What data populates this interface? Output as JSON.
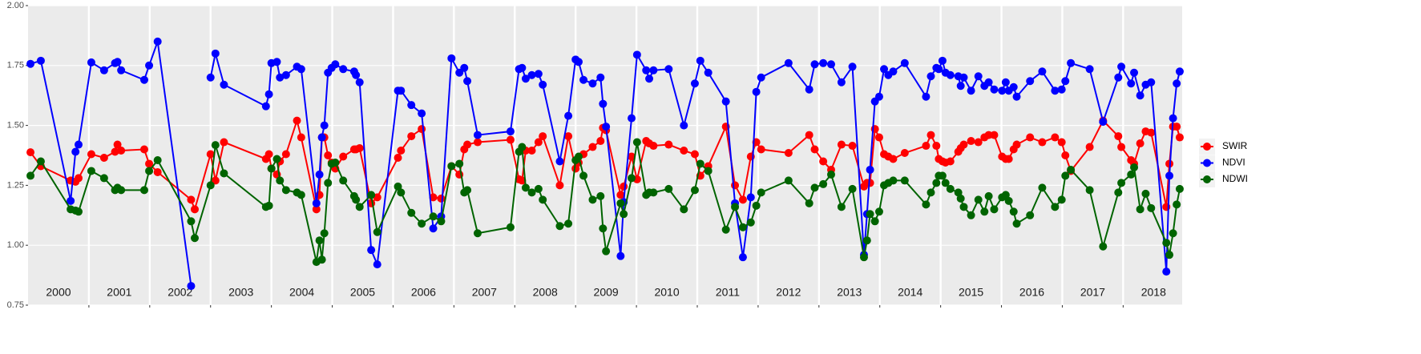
{
  "chart_data": {
    "type": "line",
    "x": [
      2000.04,
      2000.21,
      2000.7,
      2000.78,
      2000.83,
      2001.04,
      2001.25,
      2001.43,
      2001.47,
      2001.53,
      2001.91,
      2001.99,
      2002.13,
      2002.68,
      2002.74,
      2003.0,
      2003.08,
      2003.22,
      2003.91,
      2003.96,
      2004.0,
      2004.09,
      2004.14,
      2004.24,
      2004.42,
      2004.49,
      2004.74,
      2004.79,
      2004.83,
      2004.87,
      2004.93,
      2004.99,
      2005.05,
      2005.18,
      2005.36,
      2005.39,
      2005.45,
      2005.64,
      2005.74,
      2006.08,
      2006.13,
      2006.3,
      2006.47,
      2006.66,
      2006.79,
      2006.96,
      2007.09,
      2007.17,
      2007.22,
      2007.39,
      2007.93,
      2008.07,
      2008.12,
      2008.18,
      2008.28,
      2008.39,
      2008.46,
      2008.74,
      2008.88,
      2009.0,
      2009.05,
      2009.13,
      2009.28,
      2009.41,
      2009.45,
      2009.5,
      2009.74,
      2009.79,
      2009.92,
      2010.01,
      2010.16,
      2010.21,
      2010.28,
      2010.53,
      2010.78,
      2010.96,
      2011.05,
      2011.18,
      2011.47,
      2011.62,
      2011.75,
      2011.88,
      2011.97,
      2012.05,
      2012.5,
      2012.84,
      2012.93,
      2013.07,
      2013.2,
      2013.37,
      2013.55,
      2013.74,
      2013.79,
      2013.84,
      2013.92,
      2013.99,
      2014.07,
      2014.14,
      2014.22,
      2014.41,
      2014.76,
      2014.84,
      2014.93,
      2014.97,
      2015.03,
      2015.08,
      2015.16,
      2015.29,
      2015.33,
      2015.38,
      2015.5,
      2015.62,
      2015.72,
      2015.79,
      2015.88,
      2016.01,
      2016.07,
      2016.12,
      2016.2,
      2016.25,
      2016.47,
      2016.67,
      2016.88,
      2016.99,
      2017.05,
      2017.14,
      2017.45,
      2017.67,
      2017.92,
      2017.97,
      2018.13,
      2018.18,
      2018.28,
      2018.37,
      2018.46,
      2018.71,
      2018.76,
      2018.82,
      2018.88,
      2018.93
    ],
    "series": [
      {
        "name": "SWIR",
        "color": "#ff0000",
        "values": [
          1.388,
          1.33,
          1.27,
          1.265,
          1.28,
          1.38,
          1.365,
          1.39,
          1.42,
          1.395,
          1.4,
          1.34,
          1.305,
          1.19,
          1.15,
          1.38,
          1.27,
          1.43,
          1.36,
          1.38,
          1.32,
          1.295,
          1.35,
          1.38,
          1.52,
          1.45,
          1.15,
          1.21,
          1.45,
          1.45,
          1.375,
          1.345,
          1.32,
          1.37,
          1.4,
          1.4,
          1.405,
          1.175,
          1.2,
          1.365,
          1.395,
          1.455,
          1.485,
          1.2,
          1.195,
          1.33,
          1.295,
          1.4,
          1.42,
          1.43,
          1.44,
          1.275,
          1.27,
          1.395,
          1.395,
          1.43,
          1.455,
          1.25,
          1.455,
          1.32,
          1.345,
          1.38,
          1.41,
          1.435,
          1.49,
          1.48,
          1.21,
          1.245,
          1.37,
          1.275,
          1.435,
          1.425,
          1.415,
          1.42,
          1.395,
          1.38,
          1.29,
          1.33,
          1.495,
          1.25,
          1.19,
          1.37,
          1.43,
          1.4,
          1.385,
          1.46,
          1.4,
          1.35,
          1.315,
          1.42,
          1.415,
          1.245,
          1.26,
          1.26,
          1.485,
          1.45,
          1.38,
          1.37,
          1.36,
          1.385,
          1.415,
          1.46,
          1.415,
          1.36,
          1.35,
          1.345,
          1.35,
          1.39,
          1.405,
          1.42,
          1.435,
          1.43,
          1.45,
          1.46,
          1.46,
          1.37,
          1.36,
          1.36,
          1.4,
          1.42,
          1.45,
          1.43,
          1.45,
          1.43,
          1.375,
          1.31,
          1.41,
          1.52,
          1.455,
          1.41,
          1.355,
          1.34,
          1.425,
          1.475,
          1.47,
          1.16,
          1.34,
          1.495,
          1.495,
          1.45
        ]
      },
      {
        "name": "NDVI",
        "color": "#0000ff",
        "values": [
          1.757,
          1.77,
          1.185,
          1.39,
          1.42,
          1.763,
          1.73,
          1.76,
          1.765,
          1.73,
          1.69,
          1.75,
          1.85,
          0.83,
          null,
          1.7,
          1.8,
          1.67,
          1.58,
          1.63,
          1.76,
          1.765,
          1.7,
          1.71,
          1.745,
          1.735,
          1.175,
          1.295,
          1.45,
          1.5,
          1.72,
          1.74,
          1.755,
          1.735,
          1.725,
          1.71,
          1.68,
          0.98,
          0.92,
          1.645,
          1.645,
          1.585,
          1.55,
          1.07,
          1.12,
          1.78,
          1.72,
          1.74,
          1.685,
          1.46,
          1.475,
          1.735,
          1.74,
          1.695,
          1.71,
          1.715,
          1.67,
          1.35,
          1.54,
          1.775,
          1.765,
          1.69,
          1.675,
          1.7,
          1.59,
          1.495,
          0.955,
          1.18,
          1.53,
          1.795,
          1.73,
          1.695,
          1.73,
          1.735,
          1.5,
          1.675,
          1.77,
          1.72,
          1.6,
          1.175,
          0.95,
          1.2,
          1.64,
          1.7,
          1.76,
          1.65,
          1.755,
          1.76,
          1.755,
          1.68,
          1.745,
          0.96,
          1.13,
          1.315,
          1.6,
          1.62,
          1.735,
          1.71,
          1.725,
          1.76,
          1.62,
          1.705,
          1.74,
          1.735,
          1.77,
          1.72,
          1.71,
          1.705,
          1.665,
          1.7,
          1.645,
          1.705,
          1.665,
          1.68,
          1.65,
          1.645,
          1.68,
          1.645,
          1.66,
          1.62,
          1.685,
          1.725,
          1.645,
          1.65,
          1.685,
          1.76,
          1.735,
          1.515,
          1.7,
          1.745,
          1.675,
          1.72,
          1.625,
          1.67,
          1.68,
          0.89,
          1.29,
          1.53,
          1.675,
          1.725
        ]
      },
      {
        "name": "NDWI",
        "color": "#006400",
        "values": [
          1.29,
          1.35,
          1.15,
          1.145,
          1.14,
          1.31,
          1.28,
          1.23,
          1.24,
          1.23,
          1.23,
          1.31,
          1.355,
          1.1,
          1.03,
          1.25,
          1.418,
          1.3,
          1.16,
          1.165,
          1.32,
          1.36,
          1.27,
          1.23,
          1.22,
          1.21,
          0.93,
          1.02,
          0.94,
          1.05,
          1.26,
          1.34,
          1.345,
          1.27,
          1.205,
          1.19,
          1.16,
          1.21,
          1.055,
          1.245,
          1.22,
          1.135,
          1.09,
          1.12,
          1.1,
          1.33,
          1.34,
          1.22,
          1.23,
          1.05,
          1.075,
          1.39,
          1.41,
          1.24,
          1.22,
          1.235,
          1.19,
          1.08,
          1.09,
          1.355,
          1.37,
          1.29,
          1.19,
          1.205,
          1.07,
          0.975,
          1.175,
          1.13,
          1.28,
          1.43,
          1.21,
          1.22,
          1.22,
          1.235,
          1.15,
          1.23,
          1.34,
          1.31,
          1.065,
          1.16,
          1.075,
          1.095,
          1.165,
          1.22,
          1.27,
          1.175,
          1.24,
          1.255,
          1.295,
          1.16,
          1.235,
          0.95,
          1.02,
          1.13,
          1.1,
          1.14,
          1.25,
          1.26,
          1.27,
          1.27,
          1.17,
          1.22,
          1.26,
          1.29,
          1.29,
          1.26,
          1.235,
          1.22,
          1.195,
          1.16,
          1.125,
          1.19,
          1.14,
          1.205,
          1.15,
          1.2,
          1.21,
          1.185,
          1.14,
          1.09,
          1.125,
          1.24,
          1.16,
          1.19,
          1.29,
          1.315,
          1.23,
          0.995,
          1.22,
          1.26,
          1.295,
          1.325,
          1.15,
          1.215,
          1.155,
          1.01,
          0.96,
          1.05,
          1.17,
          1.235
        ]
      }
    ],
    "year_labels": [
      "2000",
      "2001",
      "2002",
      "2003",
      "2004",
      "2005",
      "2006",
      "2007",
      "2008",
      "2009",
      "2010",
      "2011",
      "2012",
      "2013",
      "2014",
      "2015",
      "2016",
      "2017",
      "2018"
    ],
    "xlim": [
      2000,
      2018.97
    ],
    "xticks": [
      2001,
      2002,
      2003,
      2004,
      2005,
      2006,
      2007,
      2008,
      2009,
      2010,
      2011,
      2012,
      2013,
      2014,
      2015,
      2016,
      2017,
      2018
    ],
    "ylim": [
      0.75,
      2.0
    ],
    "yticks": [
      {
        "value": 0.75,
        "label": "0.75"
      },
      {
        "value": 1.0,
        "label": "1.00"
      },
      {
        "value": 1.25,
        "label": "1.25"
      },
      {
        "value": 1.5,
        "label": "1.50"
      },
      {
        "value": 1.75,
        "label": "1.75"
      },
      {
        "value": 2.0,
        "label": "2.00"
      }
    ],
    "grid": true,
    "legend": "right"
  }
}
